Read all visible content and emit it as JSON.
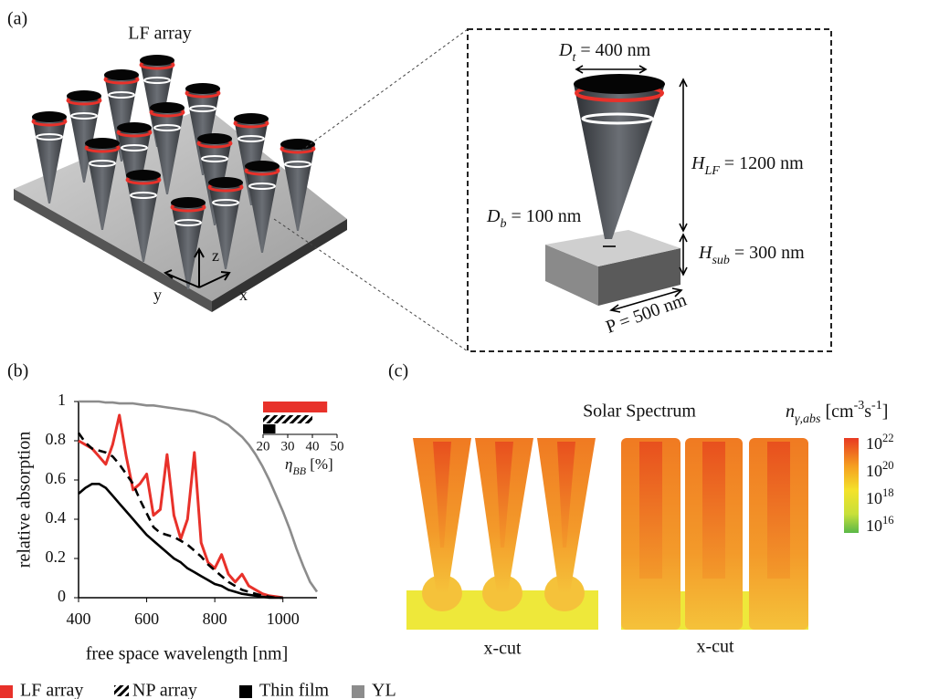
{
  "panel_labels": [
    "(a)",
    "(b)",
    "(c)"
  ],
  "panel_a": {
    "array_label": "LF array",
    "axis_labels": [
      "z",
      "y",
      "x"
    ],
    "top_diameter": {
      "symbol": "D",
      "sub": "t",
      "text": " = 400 nm"
    },
    "bottom_diameter": {
      "symbol": "D",
      "sub": "b",
      "text": " = 100 nm"
    },
    "lf_height": {
      "symbol": "H",
      "sub": "LF",
      "text": " = 1200 nm"
    },
    "sub_height": {
      "symbol": "H",
      "sub": "sub",
      "text": " = 300 nm"
    },
    "period": "P = 500 nm"
  },
  "panel_c": {
    "title": "Solar Spectrum",
    "colorbar_label": {
      "symbol": "n",
      "sub": "γ,abs",
      "text": " [cm",
      "sup1": "-3",
      "text2": "s",
      "sup2": "-1",
      "text3": "]"
    },
    "colorbar_ticks": [
      {
        "base": "10",
        "exp": "22"
      },
      {
        "base": "10",
        "exp": "20"
      },
      {
        "base": "10",
        "exp": "18"
      },
      {
        "base": "10",
        "exp": "16"
      }
    ],
    "cut_labels": [
      "x-cut",
      "x-cut"
    ]
  },
  "chart_data": [
    {
      "type": "line",
      "xlabel": "free space wavelength [nm]",
      "ylabel": "relative absorption",
      "xlim": [
        400,
        1100
      ],
      "ylim": [
        0,
        1
      ],
      "xticks": [
        400,
        600,
        800,
        1000
      ],
      "yticks": [
        0,
        0.2,
        0.4,
        0.6,
        0.8,
        1
      ],
      "legend": "bottom",
      "x": [
        400,
        420,
        440,
        460,
        480,
        500,
        520,
        540,
        560,
        580,
        600,
        620,
        640,
        660,
        680,
        700,
        720,
        740,
        760,
        780,
        800,
        820,
        840,
        860,
        880,
        900,
        920,
        940,
        960,
        980,
        1000,
        1020,
        1040,
        1060,
        1080,
        1100
      ],
      "series": [
        {
          "name": "LF array",
          "color": "#e8312a",
          "style": "solid",
          "values": [
            0.8,
            0.78,
            0.76,
            0.72,
            0.68,
            0.78,
            0.93,
            0.72,
            0.55,
            0.58,
            0.63,
            0.42,
            0.45,
            0.73,
            0.42,
            0.3,
            0.4,
            0.74,
            0.28,
            0.18,
            0.15,
            0.22,
            0.12,
            0.08,
            0.12,
            0.06,
            0.04,
            0.02,
            0.01,
            0.005,
            0,
            null,
            null,
            null,
            null,
            null
          ]
        },
        {
          "name": "NP array",
          "color": "#000000",
          "style": "dashed",
          "values": [
            0.84,
            0.79,
            0.76,
            0.75,
            0.74,
            0.72,
            0.68,
            0.63,
            0.58,
            0.5,
            0.43,
            0.36,
            0.33,
            0.32,
            0.31,
            0.29,
            0.27,
            0.24,
            0.21,
            0.17,
            0.14,
            0.11,
            0.08,
            0.06,
            0.04,
            0.03,
            0.02,
            0.01,
            0.005,
            0,
            0,
            null,
            null,
            null,
            null,
            null
          ]
        },
        {
          "name": "Thin film",
          "color": "#000000",
          "style": "solid",
          "values": [
            0.53,
            0.56,
            0.58,
            0.58,
            0.56,
            0.52,
            0.48,
            0.44,
            0.4,
            0.36,
            0.32,
            0.29,
            0.26,
            0.23,
            0.2,
            0.18,
            0.15,
            0.13,
            0.11,
            0.09,
            0.07,
            0.06,
            0.04,
            0.03,
            0.02,
            0.015,
            0.01,
            0.005,
            0,
            0,
            0,
            null,
            null,
            null,
            null,
            null
          ]
        },
        {
          "name": "YL",
          "color": "#8c8c8c",
          "style": "solid",
          "values": [
            1,
            1,
            1,
            1,
            0.995,
            0.995,
            0.99,
            0.99,
            0.99,
            0.985,
            0.98,
            0.98,
            0.975,
            0.97,
            0.965,
            0.96,
            0.955,
            0.95,
            0.94,
            0.93,
            0.92,
            0.9,
            0.88,
            0.85,
            0.82,
            0.78,
            0.73,
            0.67,
            0.6,
            0.52,
            0.44,
            0.35,
            0.25,
            0.16,
            0.08,
            0.03
          ]
        }
      ]
    },
    {
      "type": "bar",
      "orientation": "horizontal",
      "xlabel": {
        "symbol": "η",
        "sub": "BB",
        "text": " [%]"
      },
      "xlim": [
        20,
        50
      ],
      "xticks": [
        20,
        30,
        40,
        50
      ],
      "values": [
        46,
        40,
        25
      ],
      "colors": [
        "#e8312a",
        "#000000",
        "#000000"
      ],
      "hatched": [
        false,
        true,
        false
      ]
    }
  ]
}
